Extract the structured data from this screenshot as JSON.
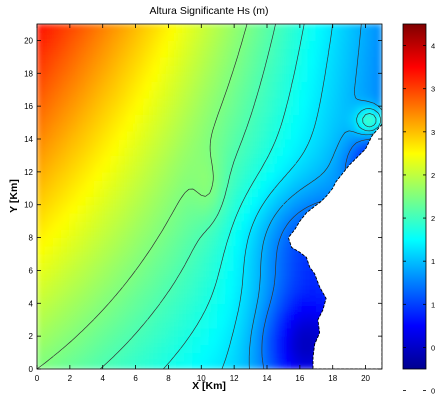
{
  "chart_data": {
    "type": "heatmap",
    "title": "Altura Significante Hs (m)",
    "xlabel": "X [Km]",
    "ylabel": "Y [Km]",
    "xlim": [
      0,
      21
    ],
    "ylim": [
      0,
      21
    ],
    "x_ticks": [
      "0",
      "2",
      "4",
      "6",
      "8",
      "10",
      "12",
      "14",
      "16",
      "18",
      "20"
    ],
    "y_ticks": [
      "0",
      "2",
      "4",
      "6",
      "8",
      "10",
      "12",
      "14",
      "16",
      "18",
      "20"
    ],
    "colorbar": {
      "range": [
        0,
        4
      ],
      "colormap": "jet",
      "tick_labels": [
        "4",
        "3",
        "3",
        "2",
        "2",
        "1",
        "1",
        "0",
        "0"
      ]
    },
    "grid": false,
    "contour_levels": [
      1.0,
      1.2,
      1.4,
      1.6,
      1.8,
      2.0
    ],
    "colors": {
      "land": "#ffffff",
      "contour": "#333333"
    }
  }
}
